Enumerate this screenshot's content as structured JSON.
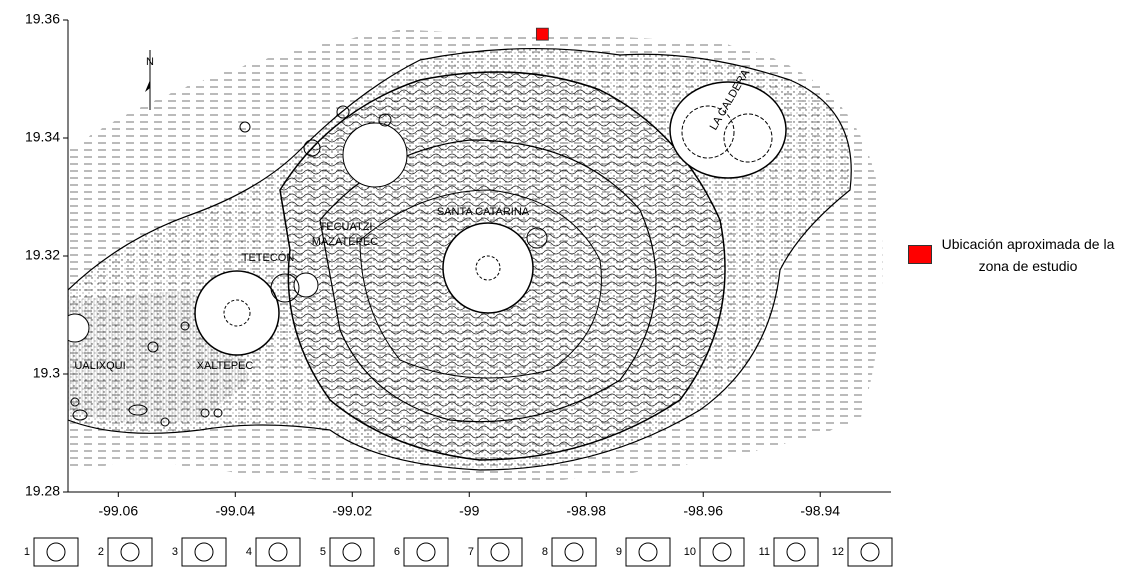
{
  "chart_data": {
    "type": "scatter",
    "xlim": [
      -99.0686,
      -98.9279
    ],
    "ylim": [
      19.28,
      19.36
    ],
    "xticks": [
      -99.06,
      -99.04,
      -99.02,
      -99,
      -98.98,
      -98.96,
      -98.94
    ],
    "yticks": [
      19.28,
      19.3,
      19.32,
      19.34,
      19.36
    ],
    "series": [
      {
        "name": "Ubicación aproximada de la zona de estudio",
        "color": "#ff0000",
        "x": [
          -98.9875
        ],
        "values": [
          19.3576
        ]
      }
    ],
    "legend": "right",
    "map_labels": [
      "LA CALDERA",
      "SANTA CATARINA",
      "TECUATZI",
      "MAZATEPEC",
      "TETECÓN",
      "XALTEPEC",
      "UALIXQUI",
      "N"
    ],
    "map_key": [
      "1",
      "2",
      "3",
      "4",
      "5",
      "6",
      "7",
      "8",
      "9",
      "10",
      "11",
      "12"
    ]
  }
}
